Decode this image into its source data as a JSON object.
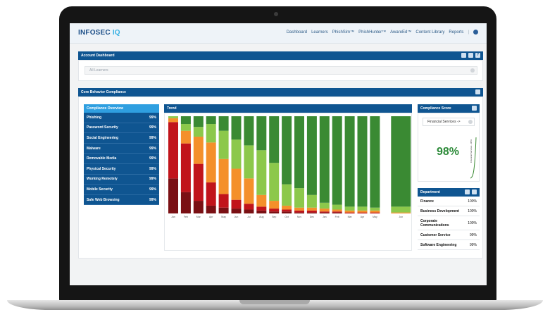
{
  "brand": {
    "name_part1": "INFOSEC ",
    "name_part2": "IQ"
  },
  "nav": {
    "links": [
      "Dashboard",
      "Learners",
      "PhishSim™",
      "PhishHunter™",
      "AwareEd™",
      "Content Library",
      "Reports"
    ],
    "separator": "|"
  },
  "account": {
    "title": "Account Dashboard",
    "learner_filter": "All Learners"
  },
  "core": {
    "title": "Core Behavior Compliance"
  },
  "overview": {
    "title": "Compliance Overview",
    "items": [
      {
        "label": "Phishing",
        "value": "99%"
      },
      {
        "label": "Password Security",
        "value": "99%"
      },
      {
        "label": "Social Engineering",
        "value": "99%"
      },
      {
        "label": "Malware",
        "value": "99%"
      },
      {
        "label": "Removable Media",
        "value": "99%"
      },
      {
        "label": "Physical Security",
        "value": "99%"
      },
      {
        "label": "Working Remotely",
        "value": "99%"
      },
      {
        "label": "Mobile Security",
        "value": "99%"
      },
      {
        "label": "Safe Web Browsing",
        "value": "99%"
      }
    ]
  },
  "trend": {
    "title": "Trend"
  },
  "score": {
    "title": "Compliance Score",
    "department_select": "Financial Services ->",
    "value": "98%",
    "sparkline_label": "Financial Services - 98%"
  },
  "department": {
    "title": "Department",
    "rows": [
      {
        "name": "Finance",
        "value": "100%"
      },
      {
        "name": "Business Development",
        "value": "100%"
      },
      {
        "name": "Corporate Communications",
        "value": "100%"
      },
      {
        "name": "Customer Service",
        "value": "99%"
      },
      {
        "name": "Software Engineering",
        "value": "99%"
      }
    ]
  },
  "colors": {
    "dark_red": "#7a1014",
    "red": "#c1141b",
    "orange": "#f4902b",
    "light_green": "#8cc84b",
    "dark_green": "#3a8a33"
  },
  "chart_data": {
    "type": "bar",
    "stacked": true,
    "categories": [
      "Jan",
      "Feb",
      "Mar",
      "Apr",
      "May",
      "Jun",
      "Jul",
      "Aug",
      "Sep",
      "Oct",
      "Nov",
      "Dec",
      "Jan",
      "Feb",
      "Mar",
      "Apr",
      "May",
      "Jun"
    ],
    "series": [
      {
        "color": "#7a1014",
        "values": [
          0.36,
          0.22,
          0.13,
          0.08,
          0.06,
          0.05,
          0.04,
          0.03,
          0.02,
          0.02,
          0.01,
          0.01,
          0.01,
          0.01,
          0.0,
          0.0,
          0.0,
          0.0
        ]
      },
      {
        "color": "#c1141b",
        "values": [
          0.58,
          0.5,
          0.38,
          0.24,
          0.14,
          0.09,
          0.06,
          0.04,
          0.03,
          0.02,
          0.02,
          0.02,
          0.01,
          0.01,
          0.01,
          0.01,
          0.01,
          0.0
        ]
      },
      {
        "color": "#f4902b",
        "values": [
          0.04,
          0.13,
          0.28,
          0.41,
          0.36,
          0.32,
          0.26,
          0.12,
          0.08,
          0.04,
          0.03,
          0.03,
          0.03,
          0.02,
          0.02,
          0.02,
          0.02,
          0.01
        ]
      },
      {
        "color": "#8cc84b",
        "values": [
          0.02,
          0.07,
          0.1,
          0.19,
          0.29,
          0.3,
          0.34,
          0.46,
          0.39,
          0.22,
          0.2,
          0.13,
          0.06,
          0.05,
          0.04,
          0.04,
          0.03,
          0.06
        ]
      },
      {
        "color": "#3a8a33",
        "values": [
          0.0,
          0.08,
          0.11,
          0.08,
          0.15,
          0.24,
          0.3,
          0.35,
          0.48,
          0.7,
          0.74,
          0.81,
          0.89,
          0.91,
          0.93,
          0.93,
          0.94,
          0.93
        ]
      }
    ],
    "ylim": [
      0,
      1
    ]
  }
}
